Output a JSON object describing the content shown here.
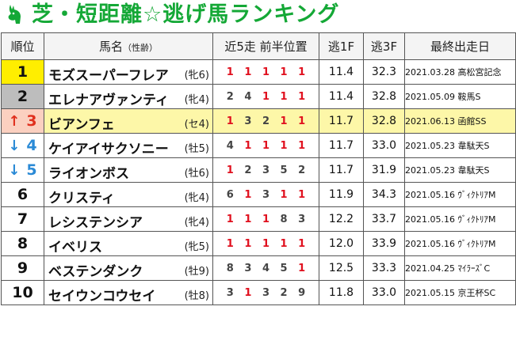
{
  "title": "芝・短距離☆逃げ馬ランキング",
  "colors": {
    "title": "#14a836",
    "highlight_row": "#fdf7a8",
    "first_place": "#ffee00",
    "second_place": "#bdbdbd",
    "up_arrow": "#e0301e",
    "down_arrow": "#2a8ad6",
    "first_position": "#e0101e"
  },
  "icon": "horse-head-icon",
  "headers": {
    "rank": "順位",
    "name": "馬名",
    "name_sub": "（性齢）",
    "recent": "近5走 前半位置",
    "f1": "逃1F",
    "f3": "逃3F",
    "last": "最終出走日"
  },
  "rows": [
    {
      "rank": "1",
      "arrow": "",
      "name": "モズスーパーフレア",
      "sex_age": "(牝6)",
      "positions": [
        "1",
        "1",
        "1",
        "1",
        "1"
      ],
      "f1": "11.4",
      "f3": "32.3",
      "last": "2021.03.28 高松宮記念"
    },
    {
      "rank": "2",
      "arrow": "",
      "name": "エレナアヴァンティ",
      "sex_age": "(牝4)",
      "positions": [
        "2",
        "4",
        "1",
        "1",
        "1"
      ],
      "f1": "11.4",
      "f3": "32.8",
      "last": "2021.05.09 鞍馬S"
    },
    {
      "rank": "3",
      "arrow": "↑",
      "name": "ビアンフェ",
      "sex_age": "(セ4)",
      "positions": [
        "1",
        "3",
        "2",
        "1",
        "1"
      ],
      "f1": "11.7",
      "f3": "32.8",
      "last": "2021.06.13 函館SS"
    },
    {
      "rank": "4",
      "arrow": "↓",
      "name": "ケイアイサクソニー",
      "sex_age": "(牡5)",
      "positions": [
        "4",
        "1",
        "1",
        "1",
        "1"
      ],
      "f1": "11.7",
      "f3": "33.0",
      "last": "2021.05.23 韋駄天S"
    },
    {
      "rank": "5",
      "arrow": "↓",
      "name": "ライオンボス",
      "sex_age": "(牡6)",
      "positions": [
        "1",
        "2",
        "3",
        "5",
        "2"
      ],
      "f1": "11.7",
      "f3": "31.9",
      "last": "2021.05.23 韋駄天S"
    },
    {
      "rank": "6",
      "arrow": "",
      "name": "クリスティ",
      "sex_age": "(牝4)",
      "positions": [
        "6",
        "1",
        "3",
        "1",
        "1"
      ],
      "f1": "11.9",
      "f3": "34.3",
      "last": "2021.05.16 ｳﾞｨｸﾄﾘｱM"
    },
    {
      "rank": "7",
      "arrow": "",
      "name": "レシステンシア",
      "sex_age": "(牝4)",
      "positions": [
        "1",
        "1",
        "1",
        "8",
        "3"
      ],
      "f1": "12.2",
      "f3": "33.7",
      "last": "2021.05.16 ｳﾞｨｸﾄﾘｱM"
    },
    {
      "rank": "8",
      "arrow": "",
      "name": "イベリス",
      "sex_age": "(牝5)",
      "positions": [
        "1",
        "1",
        "1",
        "1",
        "1"
      ],
      "f1": "12.0",
      "f3": "33.9",
      "last": "2021.05.16 ｳﾞｨｸﾄﾘｱM"
    },
    {
      "rank": "9",
      "arrow": "",
      "name": "ベステンダンク",
      "sex_age": "(牡9)",
      "positions": [
        "8",
        "3",
        "4",
        "5",
        "1"
      ],
      "f1": "12.5",
      "f3": "33.3",
      "last": "2021.04.25 ﾏｲﾗｰｽﾞC"
    },
    {
      "rank": "10",
      "arrow": "",
      "name": "セイウンコウセイ",
      "sex_age": "(牡8)",
      "positions": [
        "3",
        "1",
        "3",
        "2",
        "9"
      ],
      "f1": "11.8",
      "f3": "33.0",
      "last": "2021.05.15 京王杯SC"
    }
  ]
}
